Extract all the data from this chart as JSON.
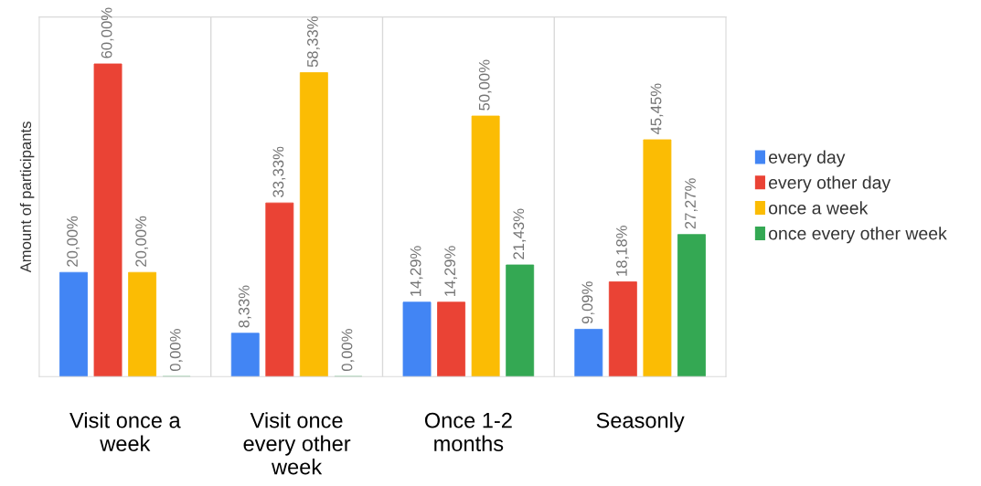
{
  "chart_data": {
    "type": "bar",
    "ylabel": "Amount of participants",
    "categories": [
      "Visit once a\nweek",
      "Visit once\nevery other\nweek",
      "Once 1-2\nmonths",
      "Seasonly"
    ],
    "series": [
      {
        "name": "every day",
        "color": "#4285f4",
        "values": [
          20.0,
          8.33,
          14.29,
          9.09
        ],
        "value_labels": [
          "20,00%",
          "8,33%",
          "14,29%",
          "9,09%"
        ]
      },
      {
        "name": "every other day",
        "color": "#ea4335",
        "values": [
          60.0,
          33.33,
          14.29,
          18.18
        ],
        "value_labels": [
          "60,00%",
          "33,33%",
          "14,29%",
          "18,18%"
        ]
      },
      {
        "name": "once a week",
        "color": "#fbbc04",
        "values": [
          20.0,
          58.33,
          50.0,
          45.45
        ],
        "value_labels": [
          "20,00%",
          "58,33%",
          "50,00%",
          "45,45%"
        ]
      },
      {
        "name": "once every other week",
        "color": "#34a853",
        "values": [
          0.0,
          0.0,
          21.43,
          27.27
        ],
        "value_labels": [
          "0,00%",
          "0,00%",
          "21,43%",
          "27,27%"
        ]
      }
    ],
    "grid": "x",
    "legend": "right"
  }
}
